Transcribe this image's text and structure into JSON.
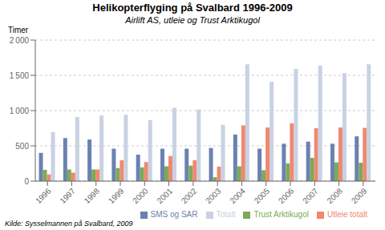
{
  "chart_data": {
    "type": "bar",
    "title": "Helikopterflyging på Svalbard 1996-2009",
    "subtitle": "Airlift AS, utleie og Trust Arktikugol",
    "ylabel": "Timer",
    "source": "Kilde: Sysselmannen på Svalbard, 2009",
    "categories": [
      "1996",
      "1997",
      "1998",
      "1999",
      "2000",
      "2001",
      "2002",
      "2003",
      "2004",
      "2005",
      "2006",
      "2007",
      "2008",
      "2009"
    ],
    "series": [
      {
        "name": "SMS og SAR",
        "color": "#6b81b0",
        "values": [
          400,
          610,
          590,
          460,
          375,
          460,
          460,
          470,
          660,
          460,
          530,
          560,
          530,
          635
        ]
      },
      {
        "name": "Trust Arktikugol",
        "color": "#7aab55",
        "values": [
          160,
          165,
          165,
          185,
          195,
          210,
          220,
          55,
          210,
          155,
          250,
          330,
          265,
          260
        ]
      },
      {
        "name": "Utleie totalt",
        "color": "#f08870",
        "values": [
          95,
          120,
          165,
          295,
          270,
          355,
          295,
          205,
          790,
          760,
          820,
          750,
          760,
          755
        ]
      },
      {
        "name": "Totalt",
        "color": "#c8d2e2",
        "values": [
          695,
          910,
          930,
          940,
          865,
          1040,
          1015,
          800,
          1655,
          1410,
          1590,
          1640,
          1530,
          1655
        ]
      }
    ],
    "ylim": [
      0,
      2000
    ],
    "yticks": [
      0,
      500,
      {
        "value": 1000,
        "label": "1 000"
      },
      {
        "value": 1500,
        "label": "1 500"
      },
      {
        "value": 2000,
        "label": "2 000"
      }
    ],
    "grid": true,
    "legend": "bottom"
  }
}
